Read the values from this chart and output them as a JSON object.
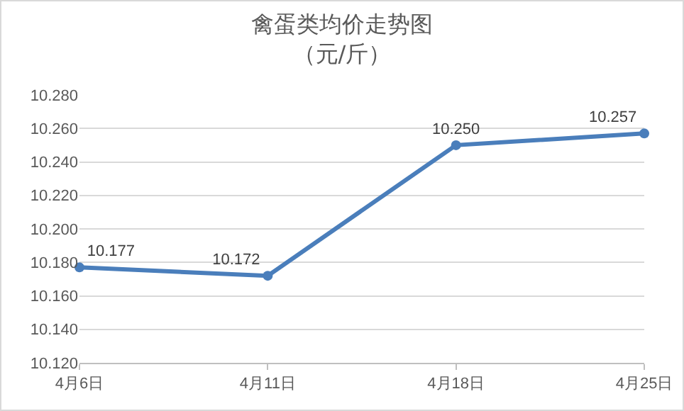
{
  "chart_data": {
    "type": "line",
    "title": "禽蛋类均价走势图",
    "subtitle": "（元/斤）",
    "categories": [
      "4月6日",
      "4月11日",
      "4月18日",
      "4月25日"
    ],
    "series": [
      {
        "color": "#4a7ebb",
        "values": [
          10.177,
          10.172,
          10.25,
          10.257
        ],
        "value_labels": [
          "10.177",
          "10.172",
          "10.250",
          "10.257"
        ]
      }
    ],
    "ylim": [
      10.12,
      10.28
    ],
    "yticks": [
      {
        "value": 10.12,
        "label": "10.120"
      },
      {
        "value": 10.14,
        "label": "10.140"
      },
      {
        "value": 10.16,
        "label": "10.160"
      },
      {
        "value": 10.18,
        "label": "10.180"
      },
      {
        "value": 10.2,
        "label": "10.200"
      },
      {
        "value": 10.22,
        "label": "10.220"
      },
      {
        "value": 10.24,
        "label": "10.240"
      },
      {
        "value": 10.26,
        "label": "10.260"
      },
      {
        "value": 10.28,
        "label": "10.280"
      }
    ],
    "grid": "y",
    "marker": "circle",
    "line_style": "solid",
    "legend": false
  }
}
